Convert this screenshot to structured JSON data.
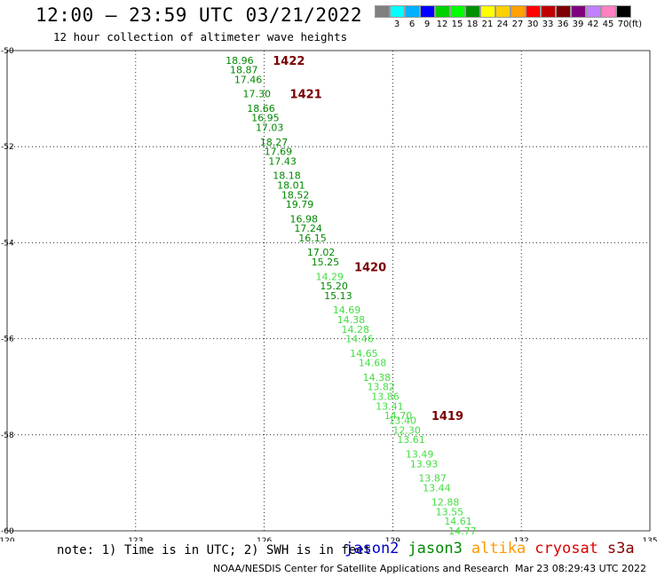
{
  "header": {
    "title": "12:00 — 23:59 UTC 03/21/2022",
    "subtitle": "12 hour collection of altimeter wave heights"
  },
  "legend": {
    "unit": "(ft)",
    "bins": [
      {
        "label": "",
        "color": "#808080"
      },
      {
        "label": "3",
        "color": "#00ffff"
      },
      {
        "label": "6",
        "color": "#00b0ff"
      },
      {
        "label": "9",
        "color": "#0000ff"
      },
      {
        "label": "12",
        "color": "#00d000"
      },
      {
        "label": "15",
        "color": "#00ff00"
      },
      {
        "label": "18",
        "color": "#009000"
      },
      {
        "label": "21",
        "color": "#ffff00"
      },
      {
        "label": "24",
        "color": "#ffd000"
      },
      {
        "label": "27",
        "color": "#ffa000"
      },
      {
        "label": "30",
        "color": "#ff0000"
      },
      {
        "label": "33",
        "color": "#c00000"
      },
      {
        "label": "36",
        "color": "#800000"
      },
      {
        "label": "39",
        "color": "#800080"
      },
      {
        "label": "42",
        "color": "#c080ff"
      },
      {
        "label": "45",
        "color": "#ff80c0"
      },
      {
        "label": "70",
        "color": "#000000"
      }
    ]
  },
  "map": {
    "lon_range": [
      120,
      135
    ],
    "lat_range": [
      -60,
      -50
    ],
    "lon_ticks": [
      "120",
      "123",
      "126",
      "129",
      "132",
      "135"
    ],
    "lat_ticks": [
      "-50",
      "-52",
      "-54",
      "-56",
      "-58",
      "-60"
    ],
    "grid": true,
    "colors": {
      "dark_green": "#008800",
      "light_green": "#44dd44",
      "pass_label": "#7a0000"
    }
  },
  "passes": [
    {
      "label": "1422",
      "lon": 126.2,
      "lat": -50.2
    },
    {
      "label": "1421",
      "lon": 126.6,
      "lat": -50.9
    },
    {
      "label": "1420",
      "lon": 128.1,
      "lat": -54.5
    },
    {
      "label": "1419",
      "lon": 129.9,
      "lat": -57.6
    }
  ],
  "observations": [
    {
      "v": "18.96",
      "lon": 125.1,
      "lat": -50.2
    },
    {
      "v": "18.87",
      "lon": 125.2,
      "lat": -50.4
    },
    {
      "v": "17.46",
      "lon": 125.3,
      "lat": -50.6
    },
    {
      "v": "17.30",
      "lon": 125.5,
      "lat": -50.9
    },
    {
      "v": "18.66",
      "lon": 125.6,
      "lat": -51.2
    },
    {
      "v": "16.95",
      "lon": 125.7,
      "lat": -51.4
    },
    {
      "v": "17.03",
      "lon": 125.8,
      "lat": -51.6
    },
    {
      "v": "18.27",
      "lon": 125.9,
      "lat": -51.9
    },
    {
      "v": "17.69",
      "lon": 126.0,
      "lat": -52.1
    },
    {
      "v": "17.43",
      "lon": 126.1,
      "lat": -52.3
    },
    {
      "v": "18.18",
      "lon": 126.2,
      "lat": -52.6
    },
    {
      "v": "18.01",
      "lon": 126.3,
      "lat": -52.8
    },
    {
      "v": "18.52",
      "lon": 126.4,
      "lat": -53.0
    },
    {
      "v": "19.79",
      "lon": 126.5,
      "lat": -53.2
    },
    {
      "v": "16.98",
      "lon": 126.6,
      "lat": -53.5
    },
    {
      "v": "17.24",
      "lon": 126.7,
      "lat": -53.7
    },
    {
      "v": "16.15",
      "lon": 126.8,
      "lat": -53.9
    },
    {
      "v": "17.02",
      "lon": 127.0,
      "lat": -54.2
    },
    {
      "v": "15.25",
      "lon": 127.1,
      "lat": -54.4
    },
    {
      "v": "14.29",
      "lon": 127.2,
      "lat": -54.7
    },
    {
      "v": "15.20",
      "lon": 127.3,
      "lat": -54.9
    },
    {
      "v": "15.13",
      "lon": 127.4,
      "lat": -55.1
    },
    {
      "v": "14.69",
      "lon": 127.6,
      "lat": -55.4
    },
    {
      "v": "14.38",
      "lon": 127.7,
      "lat": -55.6
    },
    {
      "v": "14.28",
      "lon": 127.8,
      "lat": -55.8
    },
    {
      "v": "14.46",
      "lon": 127.9,
      "lat": -56.0
    },
    {
      "v": "14.65",
      "lon": 128.0,
      "lat": -56.3
    },
    {
      "v": "14.68",
      "lon": 128.2,
      "lat": -56.5
    },
    {
      "v": "14.38",
      "lon": 128.3,
      "lat": -56.8
    },
    {
      "v": "13.82",
      "lon": 128.4,
      "lat": -57.0
    },
    {
      "v": "13.86",
      "lon": 128.5,
      "lat": -57.2
    },
    {
      "v": "13.41",
      "lon": 128.6,
      "lat": -57.4
    },
    {
      "v": "14.70",
      "lon": 128.8,
      "lat": -57.6
    },
    {
      "v": "13.40",
      "lon": 128.9,
      "lat": -57.7
    },
    {
      "v": "12.30",
      "lon": 129.0,
      "lat": -57.9
    },
    {
      "v": "13.61",
      "lon": 129.1,
      "lat": -58.1
    },
    {
      "v": "13.49",
      "lon": 129.3,
      "lat": -58.4
    },
    {
      "v": "13.93",
      "lon": 129.4,
      "lat": -58.6
    },
    {
      "v": "13.87",
      "lon": 129.6,
      "lat": -58.9
    },
    {
      "v": "13.44",
      "lon": 129.7,
      "lat": -59.1
    },
    {
      "v": "12.88",
      "lon": 129.9,
      "lat": -59.4
    },
    {
      "v": "13.55",
      "lon": 130.0,
      "lat": -59.6
    },
    {
      "v": "14.61",
      "lon": 130.2,
      "lat": -59.8
    },
    {
      "v": "14.77",
      "lon": 130.3,
      "lat": -60.0
    }
  ],
  "footer": {
    "note": "note: 1) Time is in UTC; 2) SWH is in feet",
    "satellites": [
      {
        "name": "jason2",
        "color": "#0000cc"
      },
      {
        "name": "jason3",
        "color": "#008800"
      },
      {
        "name": "altika",
        "color": "#ff9900"
      },
      {
        "name": "cryosat",
        "color": "#dd0000"
      },
      {
        "name": "s3a",
        "color": "#880000"
      }
    ],
    "credit": "NOAA/NESDIS Center for Satellite Applications and Research",
    "timestamp": "Mar 23 08:29:43 UTC 2022"
  }
}
